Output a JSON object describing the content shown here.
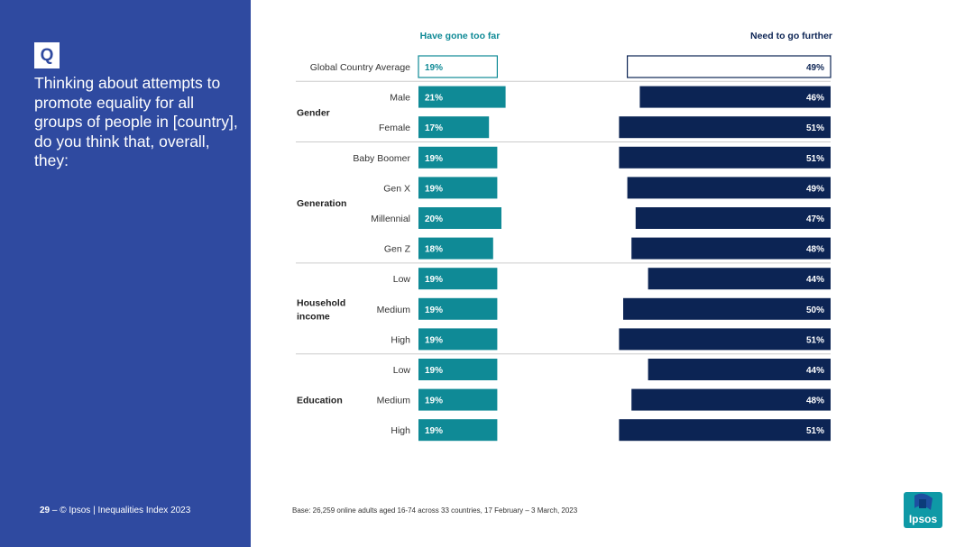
{
  "question": {
    "badge": "Q",
    "text": "Thinking about attempts to promote equality for all groups of people in [country], do you think that, overall, they:"
  },
  "footer": {
    "page_number": "29",
    "separator": "–",
    "source": "© Ipsos | Inequalities Index 2023",
    "base": "Base: 26,259 online adults aged 16-74 across 33 countries, 17 February – 3 March, 2023"
  },
  "logo": {
    "text": "Ipsos"
  },
  "colors": {
    "sidebar": "#2f4aa0",
    "teal": "#0f8a96",
    "navy": "#0c2454",
    "white": "#ffffff"
  },
  "chart_data": {
    "type": "bar",
    "orientation": "horizontal",
    "title": "",
    "unit": "%",
    "series": [
      {
        "name": "Have gone too far",
        "values": [
          19,
          21,
          17,
          19,
          19,
          20,
          18,
          19,
          19,
          19,
          19,
          19,
          19
        ]
      },
      {
        "name": "Need to go further",
        "values": [
          49,
          46,
          51,
          51,
          49,
          47,
          48,
          44,
          50,
          51,
          44,
          48,
          51
        ]
      }
    ],
    "rows": [
      {
        "label": "Global Country Average",
        "group": ""
      },
      {
        "label": "Male",
        "group": "Gender"
      },
      {
        "label": "Female",
        "group": "Gender"
      },
      {
        "label": "Baby Boomer",
        "group": "Generation"
      },
      {
        "label": "Gen X",
        "group": "Generation"
      },
      {
        "label": "Millennial",
        "group": "Generation"
      },
      {
        "label": "Gen Z",
        "group": "Generation"
      },
      {
        "label": "Low",
        "group": "Household income"
      },
      {
        "label": "Medium",
        "group": "Household income"
      },
      {
        "label": "High",
        "group": "Household income"
      },
      {
        "label": "Low",
        "group": "Education"
      },
      {
        "label": "Medium",
        "group": "Education"
      },
      {
        "label": "High",
        "group": "Education"
      }
    ],
    "groups": [
      {
        "name": "Gender",
        "lines": [
          "Gender"
        ]
      },
      {
        "name": "Generation",
        "lines": [
          "Generation"
        ]
      },
      {
        "name": "Household income",
        "lines": [
          "Household",
          "income"
        ]
      },
      {
        "name": "Education",
        "lines": [
          "Education"
        ]
      }
    ],
    "highlight_row": 0
  }
}
